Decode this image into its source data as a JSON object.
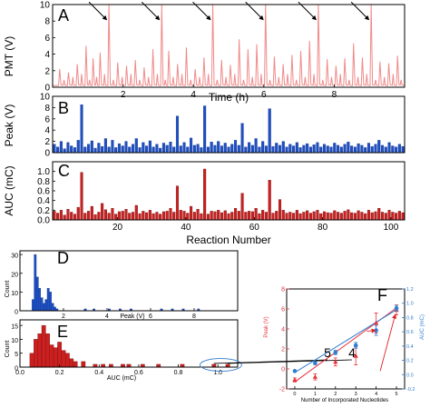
{
  "panels": {
    "A": {
      "label": "A",
      "ylabel": "PMT (V)",
      "xlabel": "Time (h)"
    },
    "B": {
      "label": "B",
      "ylabel": "Peak (V)"
    },
    "C": {
      "label": "C",
      "ylabel": "AUC (mC)",
      "xlabel": "Reaction Number"
    },
    "D": {
      "label": "D",
      "ylabel": "Count",
      "xlabel": "Peak (V)"
    },
    "E": {
      "label": "E",
      "ylabel": "Count",
      "xlabel": "AUC (mC)",
      "annotation_5": "5",
      "annotation_4": "4"
    },
    "F": {
      "label": "F",
      "ylabel_left": "Peak (V)",
      "ylabel_right": "AUC (mC)",
      "xlabel": "Number of Incorporated Nucleotides"
    }
  },
  "colors": {
    "pmt": "#f08a8a",
    "peak": "#1f4fc4",
    "auc": "#cc2020",
    "auc_edge": "#7a1010",
    "f_peak": "#e8303a",
    "f_auc": "#2f7fd0",
    "f_arrow": "#e02020",
    "ellipse": "#4a8ad0",
    "annot_arrow": "#000000"
  },
  "chart_data": [
    {
      "id": "A",
      "type": "line",
      "xlabel": "Time (h)",
      "ylabel": "PMT (V)",
      "xlim": [
        0,
        10
      ],
      "ylim": [
        0,
        10
      ],
      "xticks": [
        "2",
        "4",
        "6",
        "8"
      ],
      "yticks": [
        "0",
        "2",
        "4",
        "6",
        "8",
        "10"
      ],
      "series": [
        {
          "x": [
            0.2,
            0.45,
            0.7,
            0.95,
            1.15,
            1.35,
            1.6,
            1.85,
            2.1,
            2.35,
            2.6,
            2.85,
            3.1,
            3.3,
            3.55,
            3.8,
            4.05,
            4.3,
            4.55,
            4.8,
            5.05,
            5.3,
            5.55,
            5.8,
            6.05,
            6.3,
            6.55,
            6.8,
            7.05,
            7.3,
            7.55,
            7.8,
            8.05,
            8.3,
            8.55,
            8.8,
            9.05,
            9.3,
            9.55,
            9.8
          ],
          "values": [
            2.2,
            1.8,
            2.8,
            5.0,
            3.5,
            4.2,
            10,
            3.0,
            2.6,
            3.3,
            2.4,
            4.6,
            10,
            4.4,
            2.8,
            4.8,
            2.2,
            3.6,
            10,
            3.3,
            2.7,
            5.8,
            4.6,
            5.2,
            10,
            3.7,
            2.8,
            3.9,
            4.4,
            5.6,
            10,
            3.4,
            2.6,
            3.5,
            5.3,
            3.6,
            10,
            3.1,
            2.9,
            3.8
          ]
        }
      ],
      "arrows_at_x": [
        1.6,
        3.1,
        4.55,
        6.05,
        7.55,
        9.05
      ]
    },
    {
      "id": "B",
      "type": "bar",
      "xlabel": "",
      "ylabel": "Peak (V)",
      "xlim": [
        1,
        104
      ],
      "ylim": [
        0,
        10
      ],
      "xticks": [],
      "yticks": [
        "0",
        "2",
        "4",
        "6",
        "8",
        "10"
      ],
      "values": [
        1.5,
        1.0,
        2.0,
        0.7,
        1.8,
        1.2,
        0.9,
        2.2,
        8.5,
        1.0,
        1.5,
        2.1,
        0.8,
        1.7,
        1.1,
        2.5,
        1.0,
        2.2,
        0.9,
        1.6,
        1.2,
        2.0,
        1.0,
        1.5,
        2.5,
        0.9,
        1.8,
        1.2,
        2.1,
        1.0,
        1.5,
        0.8,
        1.7,
        1.3,
        1.9,
        1.0,
        6.5,
        1.2,
        1.8,
        1.0,
        2.6,
        1.3,
        1.5,
        0.9,
        8.3,
        1.0,
        1.9,
        1.3,
        2.0,
        1.2,
        1.7,
        1.0,
        1.5,
        2.2,
        1.3,
        5.2,
        1.0,
        1.8,
        1.3,
        2.5,
        1.0,
        2.0,
        1.2,
        7.8,
        1.1,
        1.7,
        1.3,
        2.0,
        1.0,
        1.5,
        1.2,
        1.8,
        0.9,
        1.3,
        1.6,
        1.0,
        1.4,
        1.8,
        1.0,
        1.5,
        1.2,
        1.0,
        1.7,
        1.3,
        1.0,
        1.5,
        1.9,
        1.2,
        1.0,
        1.6,
        1.3,
        0.9,
        1.7,
        1.1,
        1.5,
        2.2,
        1.3,
        1.0,
        1.8,
        1.2,
        1.0,
        1.5,
        1.1
      ]
    },
    {
      "id": "C",
      "type": "bar",
      "xlabel": "Reaction Number",
      "ylabel": "AUC (mC)",
      "xlim": [
        1,
        104
      ],
      "ylim": [
        0,
        1.2
      ],
      "xticks": [
        "20",
        "40",
        "60",
        "80",
        "100"
      ],
      "yticks": [
        "0.0",
        "0.2",
        "0.4",
        "0.6",
        "0.8",
        "1.0"
      ],
      "values": [
        0.18,
        0.14,
        0.2,
        0.1,
        0.22,
        0.16,
        0.12,
        0.26,
        0.98,
        0.14,
        0.18,
        0.28,
        0.11,
        0.16,
        0.34,
        0.21,
        0.14,
        0.24,
        0.12,
        0.17,
        0.18,
        0.22,
        0.14,
        0.16,
        0.3,
        0.13,
        0.18,
        0.15,
        0.2,
        0.13,
        0.16,
        0.12,
        0.17,
        0.18,
        0.24,
        0.16,
        0.7,
        0.2,
        0.18,
        0.14,
        0.28,
        0.16,
        0.22,
        0.13,
        1.05,
        0.12,
        0.18,
        0.17,
        0.2,
        0.15,
        0.19,
        0.13,
        0.16,
        0.24,
        0.18,
        0.55,
        0.16,
        0.18,
        0.17,
        0.24,
        0.13,
        0.2,
        0.16,
        0.82,
        0.14,
        0.18,
        0.42,
        0.2,
        0.14,
        0.16,
        0.14,
        0.2,
        0.13,
        0.16,
        0.19,
        0.14,
        0.17,
        0.2,
        0.13,
        0.17,
        0.15,
        0.14,
        0.19,
        0.16,
        0.14,
        0.18,
        0.21,
        0.15,
        0.14,
        0.19,
        0.16,
        0.13,
        0.2,
        0.15,
        0.17,
        0.24,
        0.16,
        0.14,
        0.2,
        0.16,
        0.14,
        0.18,
        0.15
      ]
    },
    {
      "id": "D",
      "type": "bar",
      "xlabel": "Peak (V)",
      "ylabel": "Count",
      "xlim": [
        0,
        10
      ],
      "ylim": [
        0,
        32
      ],
      "xticks": [
        "2",
        "4",
        "6",
        "8"
      ],
      "yticks": [
        "0",
        "10",
        "20",
        "30"
      ],
      "bin_width": 0.1,
      "bins_x": [
        0.6,
        0.7,
        0.8,
        0.9,
        1.0,
        1.1,
        1.2,
        1.3,
        1.4,
        1.5,
        1.6,
        1.7,
        3.0,
        3.4,
        4.1,
        4.6,
        5.1,
        6.5,
        7.0,
        7.5,
        8.2
      ],
      "counts": [
        6,
        30,
        18,
        12,
        7,
        4,
        6,
        12,
        10,
        4,
        2,
        1,
        1,
        1,
        1,
        1,
        1,
        1,
        1,
        1,
        1
      ]
    },
    {
      "id": "E",
      "type": "bar",
      "xlabel": "AUC (mC)",
      "ylabel": "Count",
      "xlim": [
        0,
        1.1
      ],
      "ylim": [
        0,
        17
      ],
      "xticks": [
        "0.0",
        "0.2",
        "0.4",
        "0.6",
        "0.8",
        "1.0"
      ],
      "yticks": [
        "0",
        "5",
        "10",
        "15"
      ],
      "bin_width": 0.02,
      "bins_x": [
        0.06,
        0.08,
        0.1,
        0.12,
        0.14,
        0.16,
        0.18,
        0.2,
        0.22,
        0.24,
        0.26,
        0.28,
        0.32,
        0.38,
        0.42,
        0.46,
        0.52,
        0.55,
        0.62,
        0.7,
        0.82,
        0.98,
        1.05
      ],
      "counts": [
        5,
        10,
        12,
        15,
        12,
        8,
        7,
        9,
        6,
        5,
        3,
        2,
        2,
        1,
        1,
        1,
        1,
        1,
        1,
        1,
        1,
        1,
        1
      ],
      "annotations": [
        {
          "text": "5",
          "x": 0.98
        },
        {
          "text": "4",
          "x": 1.05
        }
      ]
    },
    {
      "id": "F",
      "type": "scatter",
      "xlabel": "Number of Incorporated Nucleotides",
      "ylabel_left": "Peak (V)",
      "ylabel_right": "AUC (mC)",
      "xlim": [
        -0.4,
        5.4
      ],
      "ylim_left": [
        -2,
        8
      ],
      "ylim_right": [
        -0.2,
        1.2
      ],
      "xticks": [
        "0",
        "1",
        "2",
        "3",
        "4",
        "5"
      ],
      "yticks_left": [
        "-2",
        "0",
        "2",
        "4",
        "6",
        "8"
      ],
      "yticks_right": [
        "-0.2",
        "0.0",
        "0.2",
        "0.4",
        "0.6",
        "0.8",
        "1.0",
        "1.2"
      ],
      "series": [
        {
          "axis": "left",
          "x": [
            0,
            1,
            2,
            3,
            4,
            5
          ],
          "values": [
            -1.1,
            -0.8,
            0.7,
            1.3,
            4.6,
            5.9
          ],
          "errors": [
            0.2,
            0.3,
            0.4,
            0.9,
            1.0,
            0.5
          ],
          "fit": [
            -1.3,
            6.1
          ]
        },
        {
          "axis": "right",
          "x": [
            0,
            1,
            2,
            3,
            4,
            5
          ],
          "values": [
            0.05,
            0.16,
            0.31,
            0.41,
            0.62,
            0.93
          ],
          "errors": [
            0.01,
            0.02,
            0.03,
            0.04,
            0.07,
            0.04
          ],
          "fit": [
            0.03,
            0.91
          ]
        }
      ]
    }
  ]
}
